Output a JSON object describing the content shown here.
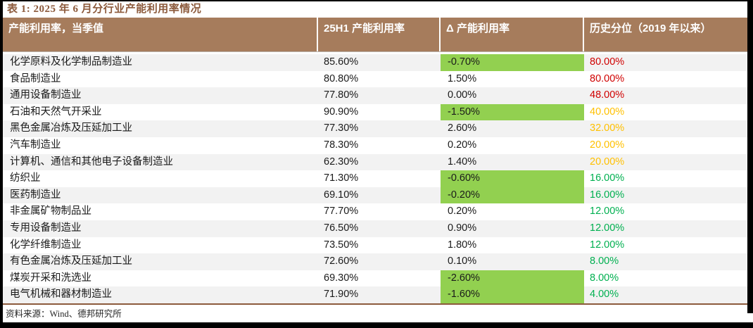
{
  "title": "表 1: 2025 年 6 月分行业产能利用率情况",
  "colors": {
    "header_bg": "#A67C5C",
    "accent_brown": "#8C5A3C",
    "highlight_green": "#92D050",
    "red": "#D00000",
    "orange": "#FFC000",
    "green": "#00B050"
  },
  "table": {
    "columns": [
      "产能利用率，当季值",
      "25H1 产能利用率",
      "Δ 产能利用率",
      "历史分位（2019 年以来）"
    ],
    "rows": [
      {
        "industry": "化学原料及化学制品制造业",
        "h1_utilization": "85.60%",
        "delta": "-0.70%",
        "delta_highlight": true,
        "percentile": "80.00%",
        "percentile_color": "red"
      },
      {
        "industry": "食品制造业",
        "h1_utilization": "80.80%",
        "delta": "1.50%",
        "delta_highlight": false,
        "percentile": "80.00%",
        "percentile_color": "red"
      },
      {
        "industry": "通用设备制造业",
        "h1_utilization": "77.80%",
        "delta": "0.00%",
        "delta_highlight": false,
        "percentile": "48.00%",
        "percentile_color": "red"
      },
      {
        "industry": "石油和天然气开采业",
        "h1_utilization": "90.90%",
        "delta": "-1.50%",
        "delta_highlight": true,
        "percentile": "40.00%",
        "percentile_color": "orange"
      },
      {
        "industry": "黑色金属冶炼及压延加工业",
        "h1_utilization": "77.30%",
        "delta": "2.60%",
        "delta_highlight": false,
        "percentile": "32.00%",
        "percentile_color": "orange"
      },
      {
        "industry": "汽车制造业",
        "h1_utilization": "78.30%",
        "delta": "0.20%",
        "delta_highlight": false,
        "percentile": "20.00%",
        "percentile_color": "orange"
      },
      {
        "industry": "计算机、通信和其他电子设备制造业",
        "h1_utilization": "62.30%",
        "delta": "1.40%",
        "delta_highlight": false,
        "percentile": "20.00%",
        "percentile_color": "orange"
      },
      {
        "industry": "纺织业",
        "h1_utilization": "71.30%",
        "delta": "-0.60%",
        "delta_highlight": true,
        "percentile": "16.00%",
        "percentile_color": "green"
      },
      {
        "industry": "医药制造业",
        "h1_utilization": "69.10%",
        "delta": "-0.20%",
        "delta_highlight": true,
        "percentile": "16.00%",
        "percentile_color": "green"
      },
      {
        "industry": "非金属矿物制品业",
        "h1_utilization": "77.70%",
        "delta": "0.20%",
        "delta_highlight": false,
        "percentile": "12.00%",
        "percentile_color": "green"
      },
      {
        "industry": "专用设备制造业",
        "h1_utilization": "76.50%",
        "delta": "0.90%",
        "delta_highlight": false,
        "percentile": "12.00%",
        "percentile_color": "green"
      },
      {
        "industry": "化学纤维制造业",
        "h1_utilization": "73.50%",
        "delta": "1.80%",
        "delta_highlight": false,
        "percentile": "12.00%",
        "percentile_color": "green"
      },
      {
        "industry": "有色金属冶炼及压延加工业",
        "h1_utilization": "72.60%",
        "delta": "0.10%",
        "delta_highlight": false,
        "percentile": "8.00%",
        "percentile_color": "green"
      },
      {
        "industry": "煤炭开采和洗选业",
        "h1_utilization": "69.30%",
        "delta": "-2.60%",
        "delta_highlight": true,
        "percentile": "8.00%",
        "percentile_color": "green"
      },
      {
        "industry": "电气机械和器材制造业",
        "h1_utilization": "71.90%",
        "delta": "-1.60%",
        "delta_highlight": true,
        "percentile": "4.00%",
        "percentile_color": "green"
      }
    ]
  },
  "footer": {
    "source_label": "资料来源：Wind、德邦研究所"
  }
}
